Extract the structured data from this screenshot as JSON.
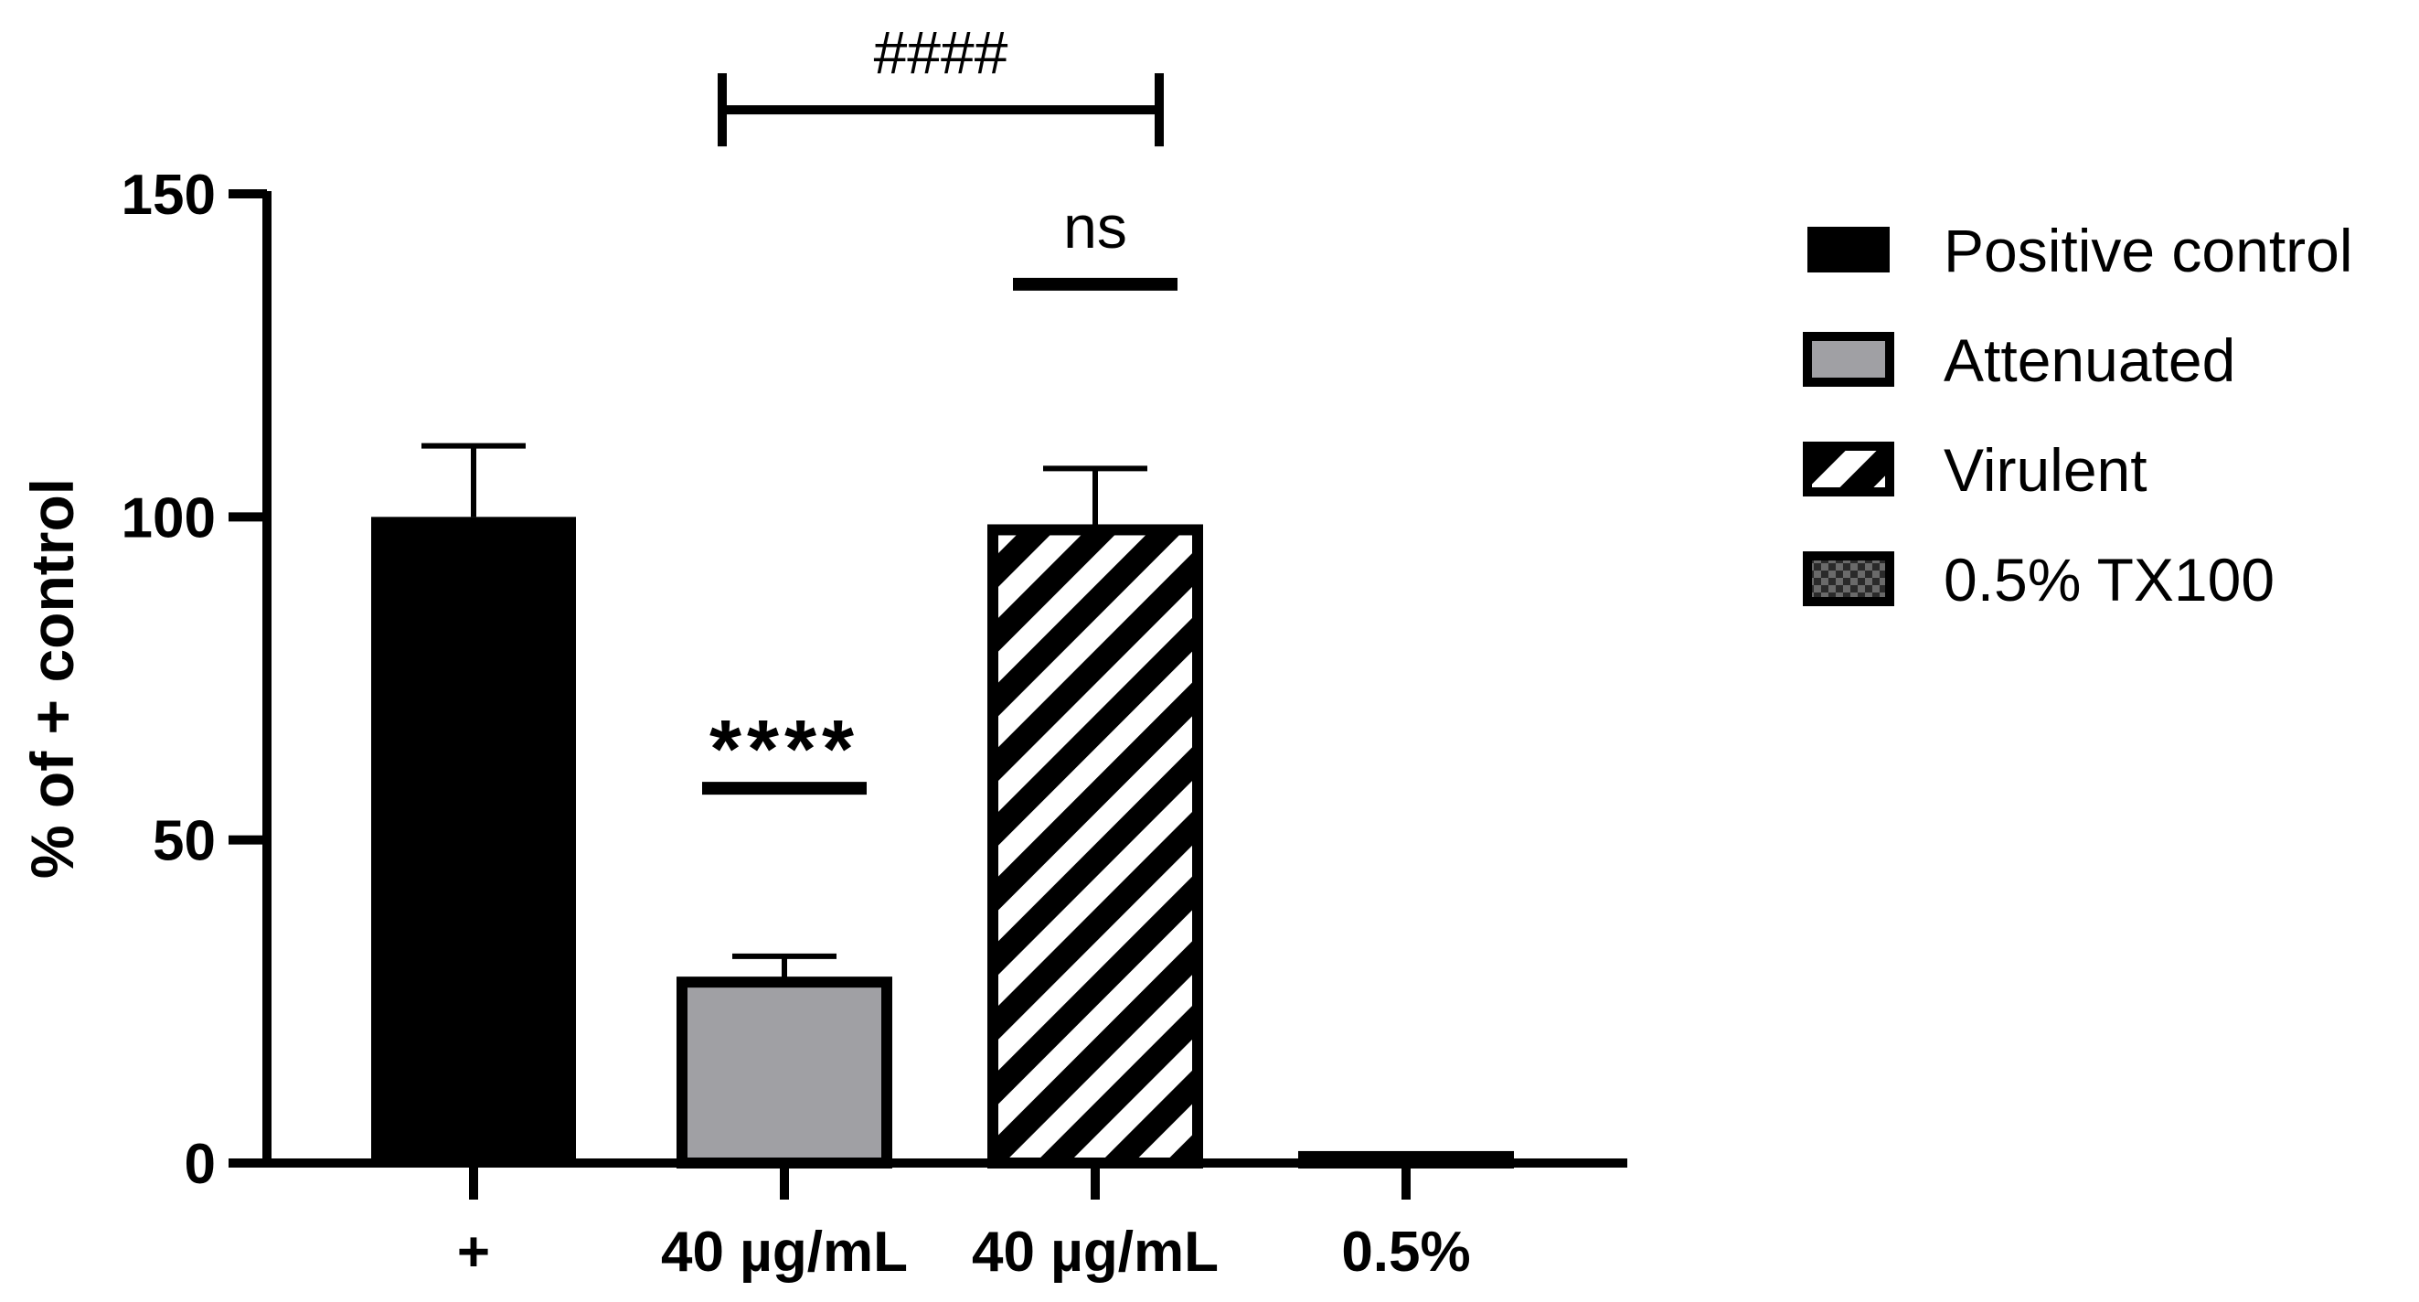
{
  "chart_data": {
    "type": "bar",
    "ylabel": "% of + control",
    "ylim": [
      0,
      150
    ],
    "yticks": [
      0,
      50,
      100,
      150
    ],
    "categories": [
      "+",
      "40 µg/mL",
      "40 µg/mL",
      "0.5%"
    ],
    "series": [
      {
        "name": "Positive control",
        "values": [
          100,
          null,
          null,
          null
        ],
        "errors": [
          11,
          null,
          null,
          null
        ],
        "fill": "solid",
        "color": "#000000"
      },
      {
        "name": "Attenuated",
        "values": [
          null,
          28,
          null,
          null
        ],
        "errors": [
          null,
          4,
          null,
          null
        ],
        "fill": "solid",
        "color": "#a0a0a4"
      },
      {
        "name": "Virulent",
        "values": [
          null,
          null,
          98,
          null
        ],
        "errors": [
          null,
          null,
          9.5,
          null
        ],
        "fill": "hatch",
        "color": "#000000"
      },
      {
        "name": "0.5% TX100",
        "values": [
          null,
          null,
          null,
          1
        ],
        "errors": [
          null,
          null,
          null,
          0.3
        ],
        "fill": "checker",
        "color": "#3a3a3a"
      }
    ],
    "annotations": [
      {
        "text": "****",
        "category_index": 1,
        "y": 58
      },
      {
        "text": "ns",
        "category_index": 2,
        "y": 136
      },
      {
        "text": "####",
        "from_index": 1,
        "to_index": 2,
        "y": 163
      }
    ],
    "legend_position": "right",
    "grid": false
  }
}
